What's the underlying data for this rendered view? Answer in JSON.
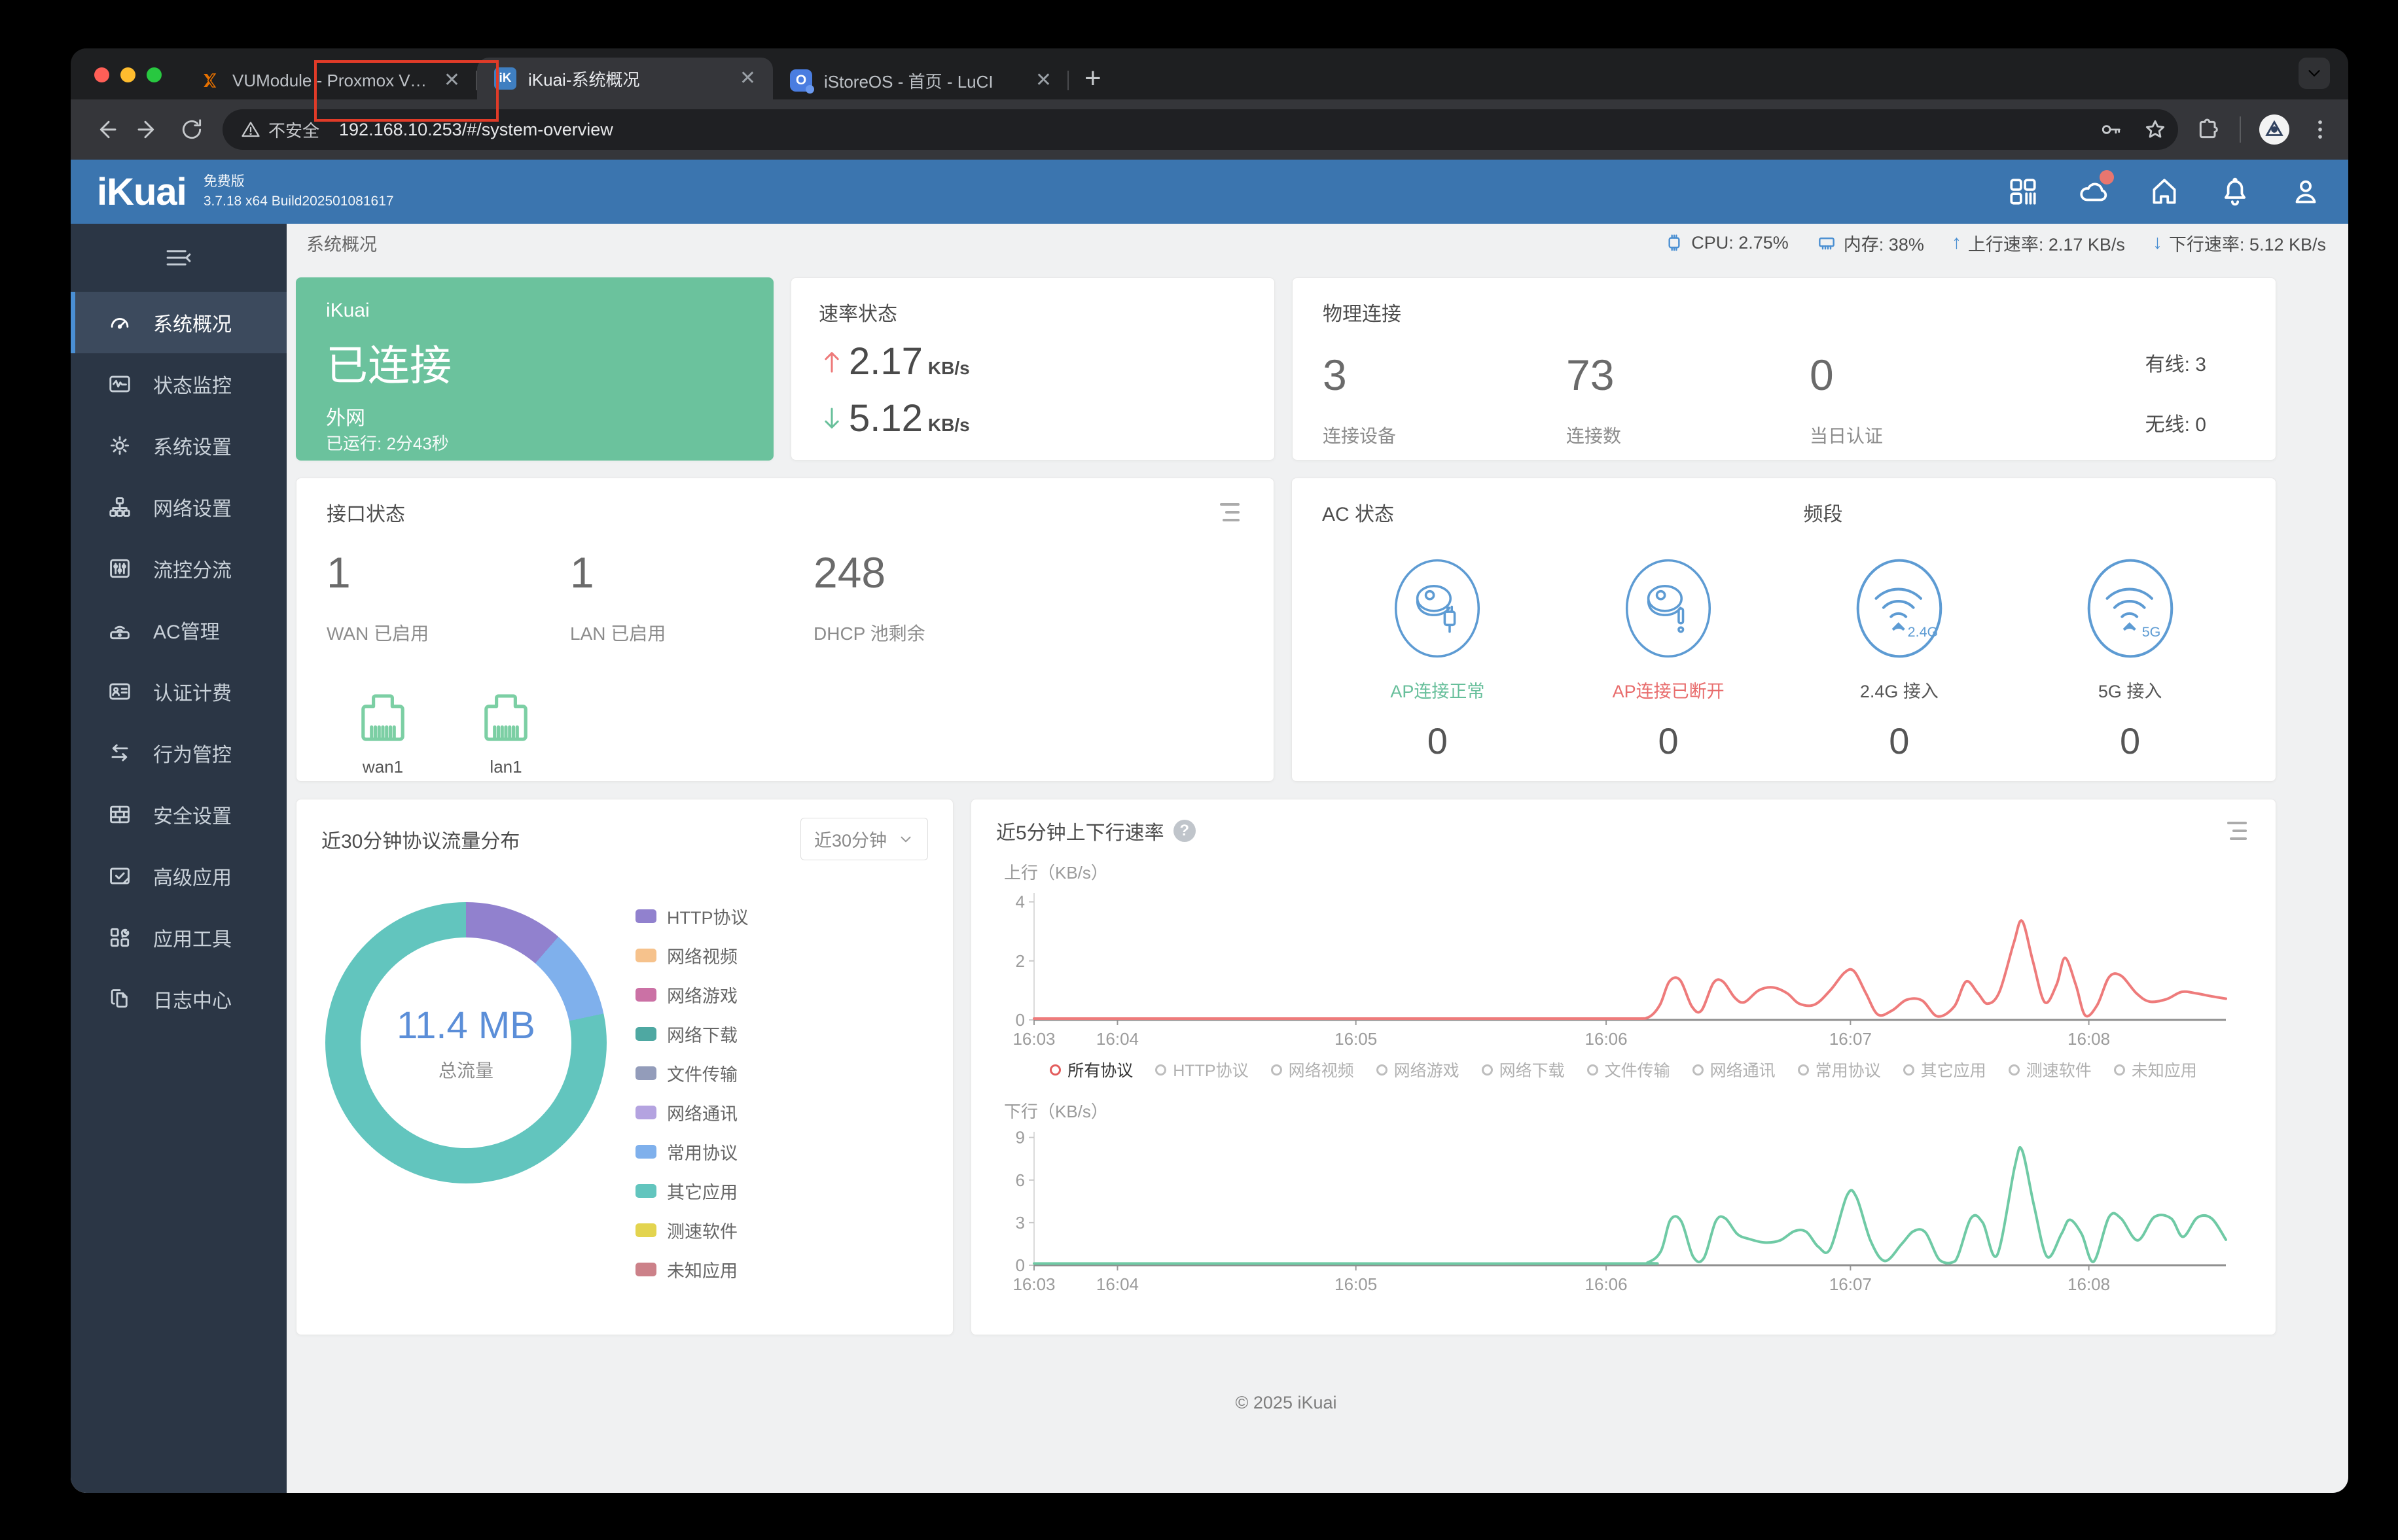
{
  "browser": {
    "tabs": [
      {
        "title": "VUModule - Proxmox Virtual E",
        "favicon": "proxmox"
      },
      {
        "title": "iKuai-系统概况",
        "favicon": "ikuai",
        "favicon_text": "iK",
        "active": true
      },
      {
        "title": "iStoreOS - 首页 - LuCI",
        "favicon": "istoreos",
        "favicon_text": "O"
      }
    ],
    "security_label": "不安全",
    "url": "192.168.10.253/#/system-overview"
  },
  "app": {
    "logo": "iKuai",
    "edition": "免费版",
    "build": "3.7.18 x64 Build202501081617",
    "breadcrumb": "系统概况",
    "stats": {
      "cpu": "CPU: 2.75%",
      "mem": "内存: 38%",
      "up": "上行速率: 2.17 KB/s",
      "down": "下行速率: 5.12 KB/s"
    },
    "sidebar": [
      {
        "label": "系统概况",
        "active": true
      },
      {
        "label": "状态监控"
      },
      {
        "label": "系统设置"
      },
      {
        "label": "网络设置"
      },
      {
        "label": "流控分流"
      },
      {
        "label": "AC管理"
      },
      {
        "label": "认证计费"
      },
      {
        "label": "行为管控"
      },
      {
        "label": "安全设置"
      },
      {
        "label": "高级应用"
      },
      {
        "label": "应用工具"
      },
      {
        "label": "日志中心"
      }
    ],
    "footer": "© 2025 iKuai"
  },
  "cards": {
    "connection": {
      "brand": "iKuai",
      "status": "已连接",
      "network": "外网",
      "uptime": "已运行: 2分43秒"
    },
    "speed": {
      "title": "速率状态",
      "up_value": "2.17",
      "up_unit": "KB/s",
      "down_value": "5.12",
      "down_unit": "KB/s"
    },
    "physical": {
      "title": "物理连接",
      "stats": [
        {
          "value": "3",
          "label": "连接设备"
        },
        {
          "value": "73",
          "label": "连接数"
        },
        {
          "value": "0",
          "label": "当日认证"
        }
      ],
      "wired": "有线: 3",
      "wireless": "无线: 0"
    },
    "interface": {
      "title": "接口状态",
      "stats": [
        {
          "value": "1",
          "label": "WAN 已启用"
        },
        {
          "value": "1",
          "label": "LAN 已启用"
        },
        {
          "value": "248",
          "label": "DHCP 池剩余"
        }
      ],
      "ports": [
        {
          "name": "wan1"
        },
        {
          "name": "lan1"
        }
      ]
    },
    "ac": {
      "title": "AC 状态",
      "band_title": "频段",
      "items": [
        {
          "label": "AP连接正常",
          "value": "0",
          "state": "ok"
        },
        {
          "label": "AP连接已断开",
          "value": "0",
          "state": "err"
        },
        {
          "label": "2.4G 接入",
          "value": "0",
          "state": "plain"
        },
        {
          "label": "5G 接入",
          "value": "0",
          "state": "plain"
        }
      ]
    },
    "protocol": {
      "title": "近30分钟协议流量分布",
      "range_selected": "近30分钟",
      "center_value": "11.4 MB",
      "center_label": "总流量"
    },
    "rate": {
      "title": "近5分钟上下行速率",
      "legend": [
        "所有协议",
        "HTTP协议",
        "网络视频",
        "网络游戏",
        "网络下载",
        "文件传输",
        "网络通讯",
        "常用协议",
        "其它应用",
        "测速软件",
        "未知应用"
      ],
      "legend_selected": 0
    }
  },
  "chart_data": [
    {
      "id": "protocol-donut",
      "type": "pie",
      "title": "近30分钟协议流量分布",
      "total_label": "总流量",
      "total_value": "11.4 MB",
      "unit": "MB",
      "legend_position": "right",
      "series": [
        {
          "name": "HTTP协议",
          "color": "#9181ce",
          "value": 1.3
        },
        {
          "name": "网络视频",
          "color": "#f6c28c",
          "value": 0
        },
        {
          "name": "网络游戏",
          "color": "#cb71a5",
          "value": 0
        },
        {
          "name": "网络下载",
          "color": "#4ea8a2",
          "value": 0
        },
        {
          "name": "文件传输",
          "color": "#939cba",
          "value": 0
        },
        {
          "name": "网络通讯",
          "color": "#b4a3e0",
          "value": 0
        },
        {
          "name": "常用协议",
          "color": "#7fb0ec",
          "value": 1.17
        },
        {
          "name": "其它应用",
          "color": "#62c5be",
          "value": 8.93
        },
        {
          "name": "测速软件",
          "color": "#e3d44f",
          "value": 0
        },
        {
          "name": "未知应用",
          "color": "#cc8189",
          "value": 0
        }
      ]
    },
    {
      "id": "upload-line",
      "type": "line",
      "axis_label": "上行（KB/s）",
      "color": "#ee7b7b",
      "ylim": [
        0,
        4.3
      ],
      "yticks": [
        0,
        2,
        4
      ],
      "xticks": [
        {
          "label": "16:03",
          "pos": 0
        },
        {
          "label": "16:04",
          "pos": 7
        },
        {
          "label": "16:05",
          "pos": 27
        },
        {
          "label": "16:06",
          "pos": 48
        },
        {
          "label": "16:07",
          "pos": 68.5
        },
        {
          "label": "16:08",
          "pos": 88.5
        }
      ],
      "points": [
        [
          0,
          0.04
        ],
        [
          20,
          0.04
        ],
        [
          40,
          0.04
        ],
        [
          50,
          0.04
        ],
        [
          51.5,
          0.08
        ],
        [
          52.5,
          0.5
        ],
        [
          53.3,
          1.3
        ],
        [
          54.2,
          1.35
        ],
        [
          55.2,
          0.45
        ],
        [
          56,
          0.32
        ],
        [
          57,
          1.25
        ],
        [
          57.8,
          1.3
        ],
        [
          58.8,
          0.75
        ],
        [
          59.6,
          0.6
        ],
        [
          60.8,
          1.0
        ],
        [
          62,
          1.1
        ],
        [
          63.2,
          0.9
        ],
        [
          64.2,
          0.55
        ],
        [
          65.5,
          0.52
        ],
        [
          66.8,
          1.0
        ],
        [
          68,
          1.6
        ],
        [
          68.8,
          1.65
        ],
        [
          69.8,
          0.9
        ],
        [
          70.8,
          0.18
        ],
        [
          72,
          0.32
        ],
        [
          73.2,
          0.68
        ],
        [
          74.5,
          0.66
        ],
        [
          75.8,
          0.12
        ],
        [
          77.2,
          0.45
        ],
        [
          78.2,
          1.3
        ],
        [
          79.2,
          0.9
        ],
        [
          80,
          0.55
        ],
        [
          81,
          0.95
        ],
        [
          82.2,
          2.6
        ],
        [
          82.9,
          3.35
        ],
        [
          83.8,
          2.0
        ],
        [
          84.8,
          0.6
        ],
        [
          85.8,
          1.2
        ],
        [
          86.5,
          2.1
        ],
        [
          87.4,
          1.2
        ],
        [
          88.2,
          0.15
        ],
        [
          89.2,
          0.5
        ],
        [
          90.2,
          1.45
        ],
        [
          91.2,
          1.5
        ],
        [
          92.5,
          0.9
        ],
        [
          93.6,
          0.62
        ],
        [
          95,
          0.7
        ],
        [
          96.3,
          0.95
        ],
        [
          97.5,
          0.9
        ],
        [
          98.8,
          0.8
        ],
        [
          100,
          0.72
        ]
      ]
    },
    {
      "id": "download-line",
      "type": "line",
      "axis_label": "下行（KB/s）",
      "color": "#6fcaa5",
      "ylim": [
        0,
        9.4
      ],
      "yticks": [
        0,
        3,
        6,
        9
      ],
      "xticks": [
        {
          "label": "16:03",
          "pos": 0
        },
        {
          "label": "16:04",
          "pos": 7
        },
        {
          "label": "16:05",
          "pos": 27
        },
        {
          "label": "16:06",
          "pos": 48
        },
        {
          "label": "16:07",
          "pos": 68.5
        },
        {
          "label": "16:08",
          "pos": 88.5
        }
      ],
      "points": [
        [
          0,
          0.12
        ],
        [
          25,
          0.12
        ],
        [
          50,
          0.12
        ],
        [
          51.5,
          0.2
        ],
        [
          52.6,
          1.0
        ],
        [
          53.4,
          3.2
        ],
        [
          54.3,
          3.1
        ],
        [
          55.3,
          0.6
        ],
        [
          56.2,
          0.5
        ],
        [
          57.2,
          3.1
        ],
        [
          58,
          3.3
        ],
        [
          59,
          2.2
        ],
        [
          60,
          1.85
        ],
        [
          61.3,
          1.6
        ],
        [
          62.6,
          1.75
        ],
        [
          63.8,
          2.4
        ],
        [
          64.8,
          2.35
        ],
        [
          65.8,
          1.3
        ],
        [
          66.8,
          1.15
        ],
        [
          68.2,
          4.9
        ],
        [
          69,
          4.8
        ],
        [
          70.2,
          1.7
        ],
        [
          71.4,
          0.3
        ],
        [
          72.8,
          1.5
        ],
        [
          73.8,
          2.4
        ],
        [
          74.8,
          2.3
        ],
        [
          76,
          0.35
        ],
        [
          77.3,
          0.3
        ],
        [
          78.6,
          3.3
        ],
        [
          79.6,
          3.0
        ],
        [
          80.8,
          0.7
        ],
        [
          82.3,
          7.0
        ],
        [
          82.9,
          8.1
        ],
        [
          83.9,
          4.2
        ],
        [
          85,
          0.6
        ],
        [
          86.2,
          2.2
        ],
        [
          86.9,
          3.2
        ],
        [
          87.9,
          2.2
        ],
        [
          88.9,
          0.25
        ],
        [
          90.2,
          3.4
        ],
        [
          91.2,
          3.3
        ],
        [
          92.6,
          1.75
        ],
        [
          94,
          3.4
        ],
        [
          95.4,
          3.3
        ],
        [
          96.4,
          2.0
        ],
        [
          97.6,
          3.35
        ],
        [
          98.8,
          3.3
        ],
        [
          100,
          1.8
        ]
      ]
    }
  ]
}
